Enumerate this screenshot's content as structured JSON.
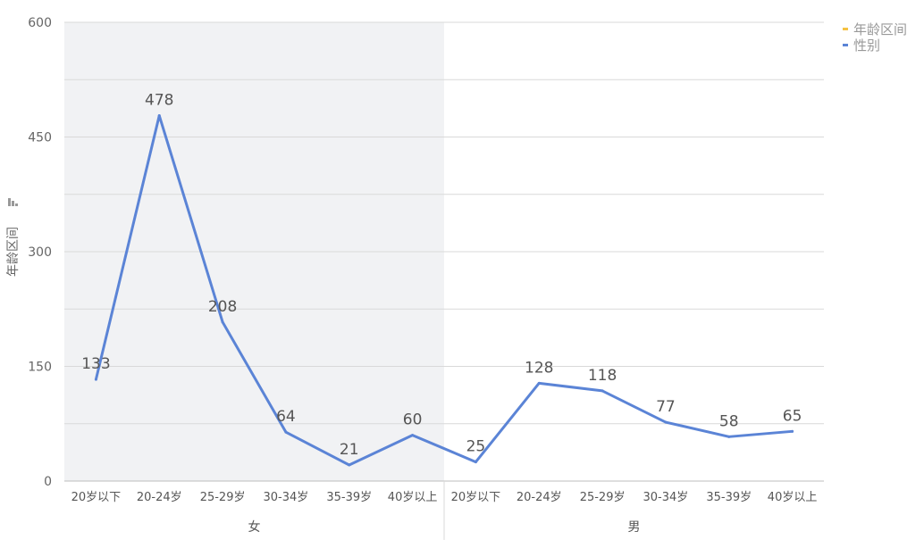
{
  "chart_data": {
    "type": "line",
    "ylabel": "年龄区间",
    "ylim": [
      0,
      600
    ],
    "yticks": [
      0,
      150,
      300,
      450,
      600
    ],
    "grid": true,
    "legend_position": "top-right",
    "legend": [
      {
        "name": "年龄区间",
        "color": "#f5c242"
      },
      {
        "name": "性别",
        "color": "#5b84d6"
      }
    ],
    "groups": [
      {
        "name": "女",
        "categories": [
          "20岁以下",
          "20-24岁",
          "25-29岁",
          "30-34岁",
          "35-39岁",
          "40岁以上"
        ],
        "shaded": true
      },
      {
        "name": "男",
        "categories": [
          "20岁以下",
          "20-24岁",
          "25-29岁",
          "30-34岁",
          "35-39岁",
          "40岁以上"
        ],
        "shaded": false
      }
    ],
    "series": [
      {
        "name": "性别",
        "color": "#5b84d6",
        "values": [
          133,
          478,
          208,
          64,
          21,
          60,
          25,
          128,
          118,
          77,
          58,
          65
        ]
      }
    ]
  }
}
